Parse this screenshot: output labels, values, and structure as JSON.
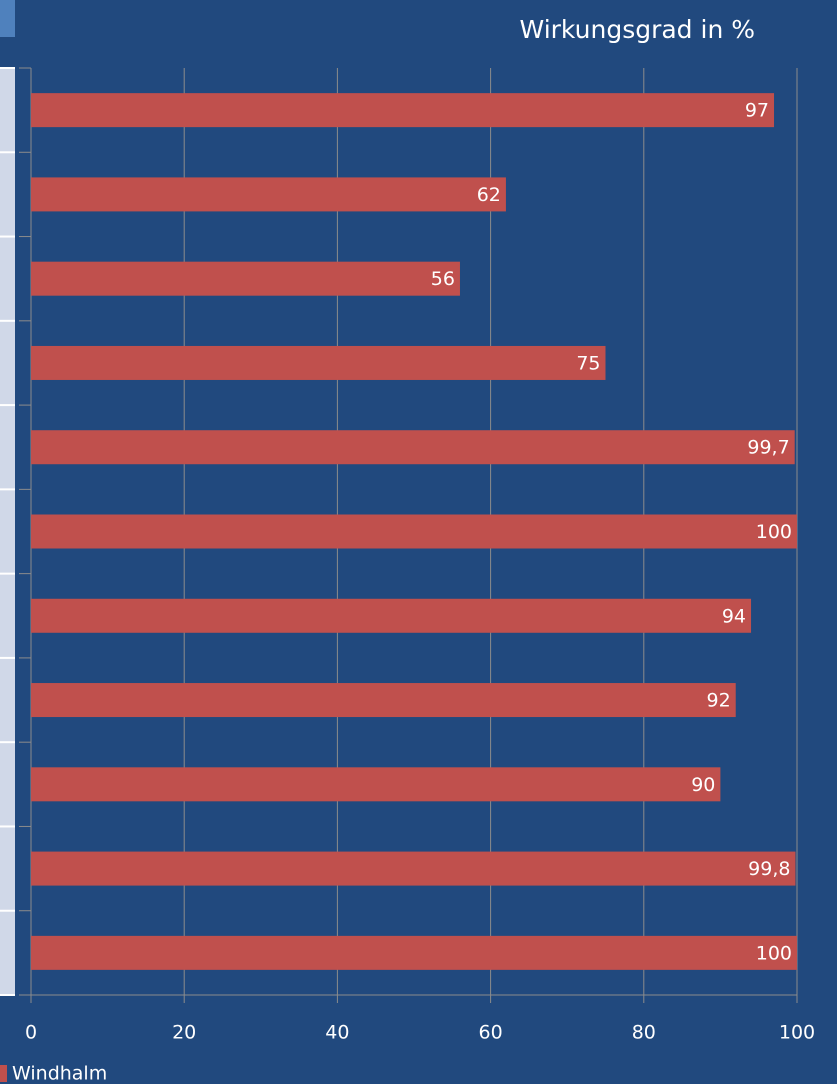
{
  "chart_data": {
    "type": "bar",
    "orientation": "horizontal",
    "title": "Wirkungsgrad in %",
    "categories": [
      null,
      null,
      null,
      null,
      null,
      null,
      null,
      null,
      null,
      null,
      null
    ],
    "series": [
      {
        "name": "Windhalm",
        "color": "#c0504d",
        "values": [
          97,
          62,
          56,
          75,
          99.7,
          100,
          94,
          92,
          90,
          99.8,
          100
        ],
        "value_labels": [
          "97",
          "62",
          "56",
          "75",
          "99,7",
          "100",
          "94",
          "92",
          "90",
          "99,8",
          "100"
        ]
      }
    ],
    "xlim": [
      0,
      100
    ],
    "xticks": [
      0,
      20,
      40,
      60,
      80,
      100
    ],
    "grid": true,
    "legend": "bottom-left"
  }
}
